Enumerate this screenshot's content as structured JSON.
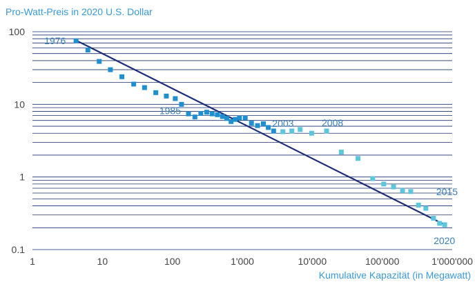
{
  "chart_data": {
    "type": "scatter",
    "ylabel": "Pro-Watt-Preis in 2020 U.S. Dollar",
    "xlabel": "Kumulative Kapazität (in Megawatt)",
    "x_scale": "log",
    "y_scale": "log",
    "xlim": [
      1,
      1000000
    ],
    "ylim": [
      0.1,
      100
    ],
    "x_ticks": [
      {
        "value": 1,
        "label": "1"
      },
      {
        "value": 10,
        "label": "10"
      },
      {
        "value": 100,
        "label": "100"
      },
      {
        "value": 1000,
        "label": "1'000"
      },
      {
        "value": 10000,
        "label": "10'000"
      },
      {
        "value": 100000,
        "label": "100'000"
      },
      {
        "value": 1000000,
        "label": "1'000'000"
      }
    ],
    "y_ticks": [
      {
        "value": 0.1,
        "label": "0.1"
      },
      {
        "value": 1,
        "label": "1"
      },
      {
        "value": 10,
        "label": "10"
      },
      {
        "value": 100,
        "label": "100"
      }
    ],
    "grid": "horizontal",
    "colors": {
      "grid": "#1a2f6e",
      "trend": "#1e2d78",
      "point_early": "#1f8fd0",
      "point_late": "#5cc6dc",
      "label": "#3a7fb8",
      "axis_title": "#3a9ad6"
    },
    "series": [
      {
        "points": [
          {
            "x": 4.2,
            "y": 75
          },
          {
            "x": 6.2,
            "y": 56
          },
          {
            "x": 9,
            "y": 39
          },
          {
            "x": 13,
            "y": 30
          },
          {
            "x": 19,
            "y": 24
          },
          {
            "x": 28,
            "y": 19
          },
          {
            "x": 40,
            "y": 17
          },
          {
            "x": 58,
            "y": 14.5
          },
          {
            "x": 82,
            "y": 13
          },
          {
            "x": 110,
            "y": 12
          },
          {
            "x": 135,
            "y": 10
          },
          {
            "x": 170,
            "y": 7.4
          },
          {
            "x": 210,
            "y": 6.7
          },
          {
            "x": 255,
            "y": 7.5
          },
          {
            "x": 310,
            "y": 7.8
          },
          {
            "x": 370,
            "y": 7.4
          },
          {
            "x": 440,
            "y": 7.2
          },
          {
            "x": 520,
            "y": 6.8
          },
          {
            "x": 600,
            "y": 6.4
          },
          {
            "x": 690,
            "y": 5.8
          },
          {
            "x": 790,
            "y": 6.2
          },
          {
            "x": 910,
            "y": 6.5
          },
          {
            "x": 1100,
            "y": 6.5
          },
          {
            "x": 1350,
            "y": 5.5
          },
          {
            "x": 1650,
            "y": 5.1
          },
          {
            "x": 2000,
            "y": 5.4
          },
          {
            "x": 2350,
            "y": 4.8
          },
          {
            "x": 2800,
            "y": 4.3
          }
        ]
      },
      {
        "points": [
          {
            "x": 3800,
            "y": 4.2
          },
          {
            "x": 5100,
            "y": 4.3
          },
          {
            "x": 6700,
            "y": 4.5
          },
          {
            "x": 9800,
            "y": 4.0
          },
          {
            "x": 16000,
            "y": 4.3
          },
          {
            "x": 26000,
            "y": 2.2
          },
          {
            "x": 45000,
            "y": 1.8
          },
          {
            "x": 73000,
            "y": 0.95
          },
          {
            "x": 105000,
            "y": 0.8
          },
          {
            "x": 145000,
            "y": 0.73
          },
          {
            "x": 195000,
            "y": 0.65
          },
          {
            "x": 255000,
            "y": 0.63
          },
          {
            "x": 330000,
            "y": 0.41
          },
          {
            "x": 420000,
            "y": 0.37
          },
          {
            "x": 540000,
            "y": 0.27
          },
          {
            "x": 660000,
            "y": 0.23
          },
          {
            "x": 780000,
            "y": 0.22
          }
        ]
      }
    ],
    "trendline": {
      "from": {
        "x": 4.2,
        "y": 76
      },
      "to": {
        "x": 780000,
        "y": 0.22
      }
    },
    "annotations": [
      {
        "text": "1976",
        "x": 4.2,
        "y": 75
      },
      {
        "text": "1985",
        "x": 135,
        "y": 10
      },
      {
        "text": "2003",
        "x": 2800,
        "y": 4.3
      },
      {
        "text": "2008",
        "x": 16000,
        "y": 4.3
      },
      {
        "text": "2015",
        "x": 255000,
        "y": 0.63
      },
      {
        "text": "2020",
        "x": 780000,
        "y": 0.22
      }
    ]
  }
}
